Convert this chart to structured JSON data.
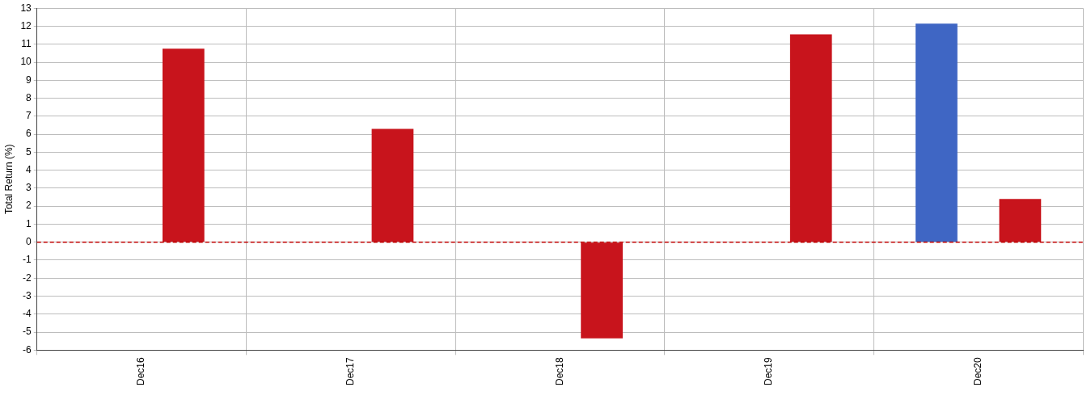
{
  "chart_data": {
    "type": "bar",
    "ylabel": "Total Return (%)",
    "categories": [
      "Dec16",
      "Dec17",
      "Dec18",
      "Dec19",
      "Dec20"
    ],
    "series": [
      {
        "color": "#3f66c4",
        "values": [
          null,
          null,
          null,
          null,
          12.15
        ]
      },
      {
        "color": "#c8141c",
        "values": [
          10.75,
          6.3,
          -5.35,
          11.55,
          2.4
        ]
      }
    ],
    "ylim": [
      -6,
      13
    ],
    "yticks": [
      -6,
      -5,
      -4,
      -3,
      -2,
      -1,
      0,
      1,
      2,
      3,
      4,
      5,
      6,
      7,
      8,
      9,
      10,
      11,
      12,
      13
    ],
    "ref_lines": [
      {
        "axis": "y",
        "value": 0,
        "color": "#c00000",
        "line_style": "dashed"
      }
    ],
    "grid": true,
    "legend": false
  }
}
